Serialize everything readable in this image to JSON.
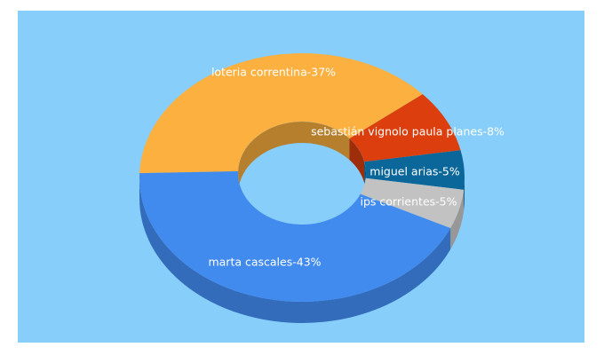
{
  "chart_data": {
    "type": "pie",
    "values": [
      37,
      8,
      5,
      5,
      43
    ],
    "value_labels": [
      "loteria correntina-37%",
      "sebastián vignolo paula planes-8%",
      "miguel arias-5%",
      "ips corrientes-5%",
      "marta cascales-43%"
    ],
    "colors": [
      "#fbb040",
      "#dc3f0d",
      "#0b679a",
      "#c2c2c2",
      "#428bee"
    ],
    "background": "#87cefa"
  }
}
